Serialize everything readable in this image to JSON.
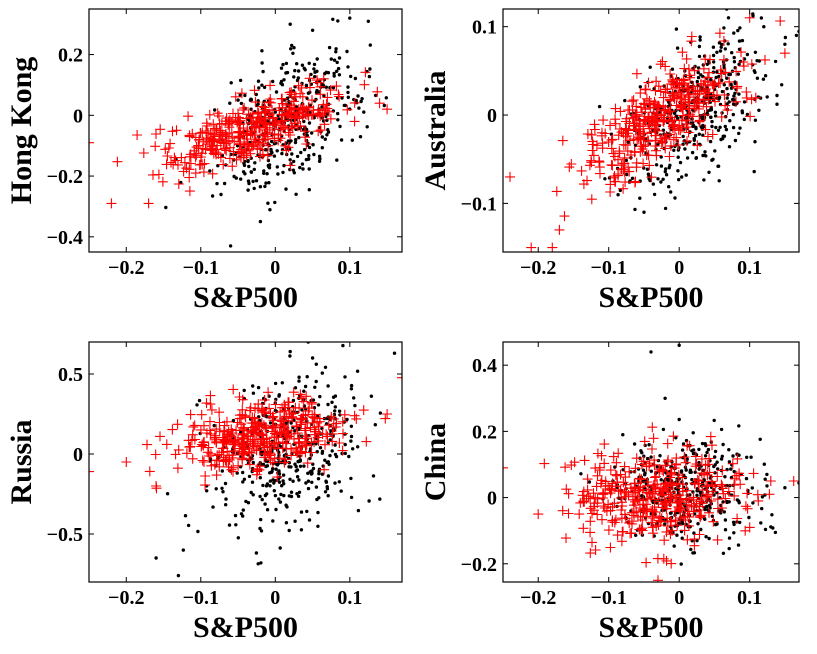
{
  "chart_data": [
    {
      "type": "scatter",
      "xlabel": "S&P500",
      "ylabel": "Hong Kong",
      "xlim": [
        -0.25,
        0.17
      ],
      "ylim": [
        -0.45,
        0.35
      ],
      "xticks": [
        -0.2,
        -0.1,
        0,
        0.1
      ],
      "xtick_labels": [
        "−0.2",
        "−0.1",
        "0",
        "0.1"
      ],
      "yticks": [
        -0.4,
        -0.2,
        0,
        0.2
      ],
      "ytick_labels": [
        "−0.4",
        "−0.2",
        "0",
        "0.2"
      ],
      "series": [
        {
          "marker": "dot",
          "color": "#000000",
          "center": [
            0.02,
            -0.02
          ],
          "spread": [
            0.05,
            0.12
          ],
          "corr": 0.55,
          "n": 420,
          "points": [
            [
              0.05,
              0.28
            ],
            [
              0.02,
              0.3
            ],
            [
              -0.06,
              -0.43
            ],
            [
              0.1,
              0.32
            ],
            [
              -0.02,
              -0.35
            ]
          ]
        },
        {
          "marker": "plus",
          "color": "#ff0000",
          "center": [
            -0.03,
            -0.04
          ],
          "spread": [
            0.06,
            0.07
          ],
          "corr": 0.7,
          "n": 380,
          "points": [
            [
              -0.25,
              -0.09
            ],
            [
              -0.22,
              -0.29
            ],
            [
              -0.17,
              -0.29
            ],
            [
              0.15,
              0.02
            ],
            [
              0.14,
              0.04
            ]
          ]
        }
      ]
    },
    {
      "type": "scatter",
      "xlabel": "S&P500",
      "ylabel": "Australia",
      "xlim": [
        -0.25,
        0.17
      ],
      "ylim": [
        -0.155,
        0.12
      ],
      "xticks": [
        -0.2,
        -0.1,
        0,
        0.1
      ],
      "xtick_labels": [
        "−0.2",
        "−0.1",
        "0",
        "0.1"
      ],
      "yticks": [
        -0.1,
        0,
        0.1
      ],
      "ytick_labels": [
        "−0.1",
        "0",
        "0.1"
      ],
      "series": [
        {
          "marker": "dot",
          "color": "#000000",
          "center": [
            0.02,
            0.0
          ],
          "spread": [
            0.05,
            0.045
          ],
          "corr": 0.6,
          "n": 420,
          "points": [
            [
              0.07,
              0.11
            ],
            [
              0.15,
              0.08
            ],
            [
              -0.05,
              -0.11
            ],
            [
              0.12,
              0.1
            ]
          ]
        },
        {
          "marker": "plus",
          "color": "#ff0000",
          "center": [
            -0.02,
            0.0
          ],
          "spread": [
            0.06,
            0.035
          ],
          "corr": 0.75,
          "n": 380,
          "points": [
            [
              -0.24,
              -0.07
            ],
            [
              -0.21,
              -0.15
            ],
            [
              -0.18,
              -0.15
            ],
            [
              -0.17,
              -0.13
            ],
            [
              0.1,
              0.11
            ],
            [
              0.15,
              0.07
            ]
          ]
        }
      ]
    },
    {
      "type": "scatter",
      "xlabel": "S&P500",
      "ylabel": "Russia",
      "xlim": [
        -0.25,
        0.17
      ],
      "ylim": [
        -0.8,
        0.7
      ],
      "xticks": [
        -0.2,
        -0.1,
        0,
        0.1
      ],
      "xtick_labels": [
        "−0.2",
        "−0.1",
        "0",
        "0.1"
      ],
      "yticks": [
        -0.5,
        0,
        0.5
      ],
      "ytick_labels": [
        "−0.5",
        "0",
        "0.5"
      ],
      "series": [
        {
          "marker": "dot",
          "color": "#000000",
          "center": [
            0.01,
            0.0
          ],
          "spread": [
            0.05,
            0.25
          ],
          "corr": 0.3,
          "n": 420,
          "points": [
            [
              0.16,
              0.63
            ],
            [
              -0.16,
              -0.65
            ],
            [
              -0.13,
              -0.76
            ],
            [
              0.02,
              0.64
            ],
            [
              0.05,
              0.6
            ]
          ]
        },
        {
          "marker": "plus",
          "color": "#ff0000",
          "center": [
            -0.02,
            0.12
          ],
          "spread": [
            0.06,
            0.11
          ],
          "corr": 0.35,
          "n": 380,
          "points": [
            [
              -0.25,
              -0.11
            ],
            [
              -0.2,
              -0.05
            ],
            [
              -0.16,
              -0.2
            ],
            [
              0.15,
              0.25
            ]
          ]
        }
      ]
    },
    {
      "type": "scatter",
      "xlabel": "S&P500",
      "ylabel": "China",
      "xlim": [
        -0.25,
        0.17
      ],
      "ylim": [
        -0.255,
        0.47
      ],
      "xticks": [
        -0.2,
        -0.1,
        0,
        0.1
      ],
      "xtick_labels": [
        "−0.2",
        "−0.1",
        "0",
        "0.1"
      ],
      "yticks": [
        -0.2,
        0,
        0.2,
        0.4
      ],
      "ytick_labels": [
        "−0.2",
        "0",
        "0.2",
        "0.4"
      ],
      "series": [
        {
          "marker": "dot",
          "color": "#000000",
          "center": [
            0.01,
            0.02
          ],
          "spread": [
            0.05,
            0.08
          ],
          "corr": 0.05,
          "n": 420,
          "points": [
            [
              -0.04,
              0.44
            ],
            [
              0.0,
              0.46
            ],
            [
              -0.02,
              0.3
            ],
            [
              0.15,
              0.03
            ],
            [
              -0.08,
              0.19
            ]
          ]
        },
        {
          "marker": "plus",
          "color": "#ff0000",
          "center": [
            -0.03,
            0.01
          ],
          "spread": [
            0.06,
            0.07
          ],
          "corr": 0.05,
          "n": 380,
          "points": [
            [
              -0.25,
              0.09
            ],
            [
              -0.2,
              -0.05
            ],
            [
              -0.03,
              -0.25
            ],
            [
              0.1,
              -0.09
            ],
            [
              0.13,
              0.05
            ]
          ]
        }
      ]
    }
  ]
}
